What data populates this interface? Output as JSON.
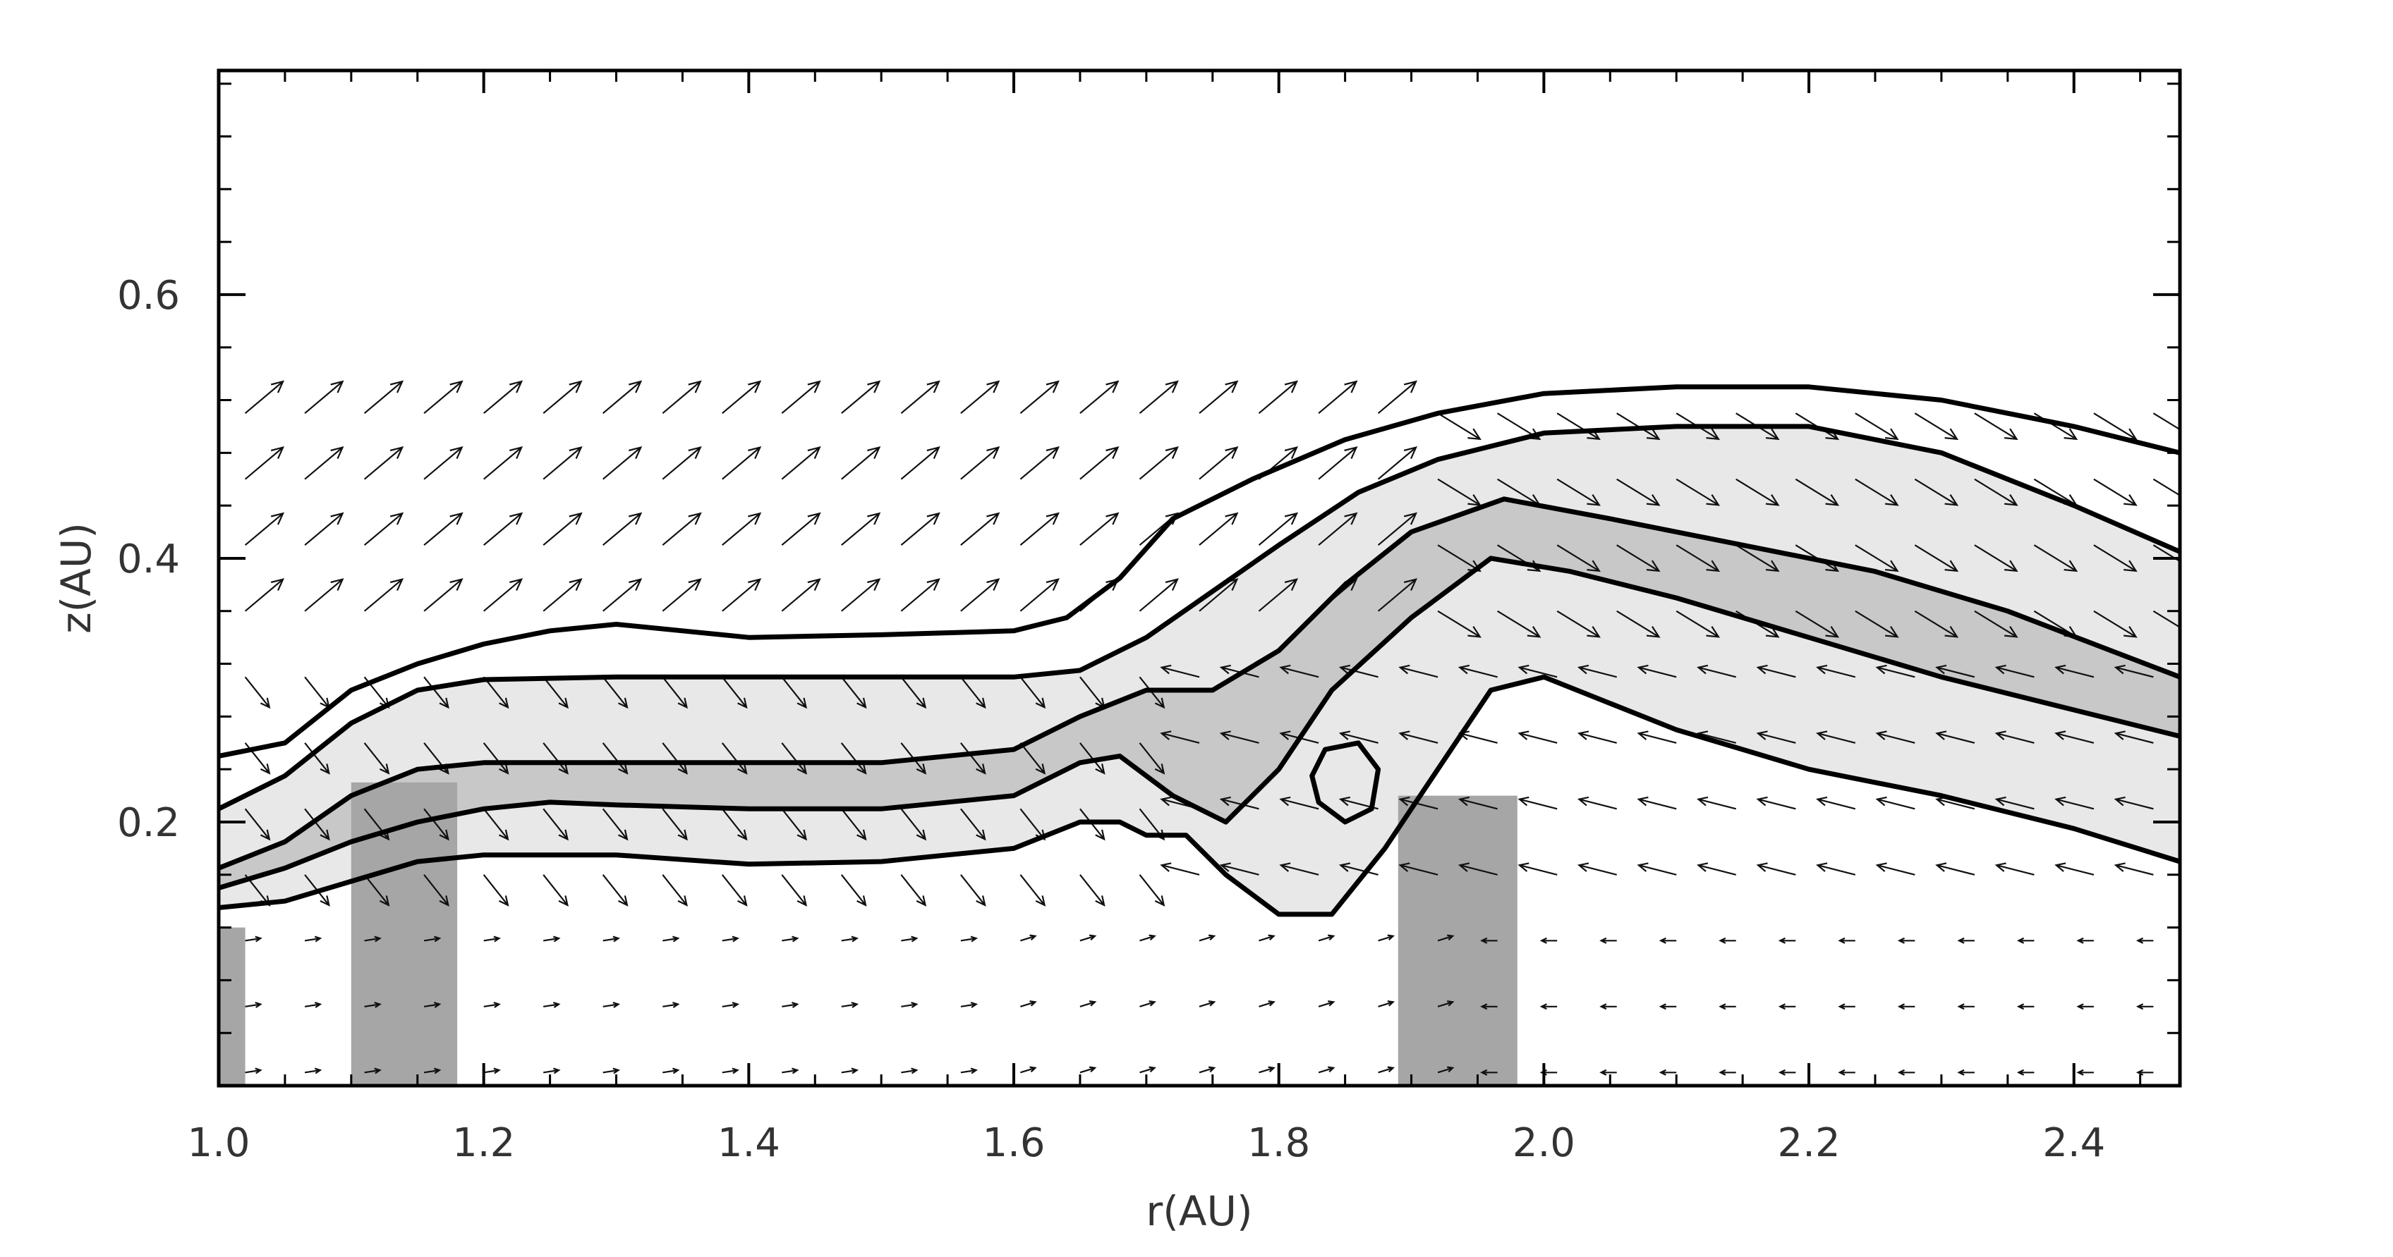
{
  "chart_data": {
    "type": "contour",
    "xlabel": "r(AU)",
    "ylabel": "z(AU)",
    "xlim": [
      1.0,
      2.48
    ],
    "ylim": [
      0.0,
      0.77
    ],
    "xticks": [
      1.0,
      1.2,
      1.4,
      1.6,
      1.8,
      2.0,
      2.2,
      2.4
    ],
    "xtick_labels": [
      "1.0",
      "1.2",
      "1.4",
      "1.6",
      "1.8",
      "2.0",
      "2.2",
      "2.4"
    ],
    "yticks": [
      0.2,
      0.4,
      0.6
    ],
    "ytick_labels": [
      "0.2",
      "0.4",
      "0.6"
    ],
    "grid": false,
    "colors": {
      "shade_light": "#e8e8e8",
      "shade_mid": "#c8c8c8",
      "shade_dark": "#a6a6a6",
      "line": "#000000"
    },
    "contours": [
      {
        "weight": "bold",
        "points": [
          [
            1.0,
            0.25
          ],
          [
            1.05,
            0.26
          ],
          [
            1.1,
            0.3
          ],
          [
            1.15,
            0.32
          ],
          [
            1.2,
            0.335
          ],
          [
            1.25,
            0.345
          ],
          [
            1.3,
            0.35
          ],
          [
            1.35,
            0.345
          ],
          [
            1.4,
            0.34
          ],
          [
            1.5,
            0.342
          ],
          [
            1.6,
            0.345
          ],
          [
            1.64,
            0.355
          ],
          [
            1.68,
            0.385
          ],
          [
            1.72,
            0.43
          ],
          [
            1.78,
            0.46
          ],
          [
            1.85,
            0.49
          ],
          [
            1.92,
            0.51
          ],
          [
            2.0,
            0.525
          ],
          [
            2.1,
            0.53
          ],
          [
            2.2,
            0.53
          ],
          [
            2.3,
            0.52
          ],
          [
            2.4,
            0.5
          ],
          [
            2.48,
            0.48
          ]
        ]
      },
      {
        "weight": "bold",
        "points": [
          [
            1.0,
            0.21
          ],
          [
            1.05,
            0.235
          ],
          [
            1.1,
            0.275
          ],
          [
            1.15,
            0.3
          ],
          [
            1.2,
            0.308
          ],
          [
            1.3,
            0.31
          ],
          [
            1.4,
            0.31
          ],
          [
            1.5,
            0.31
          ],
          [
            1.6,
            0.31
          ],
          [
            1.65,
            0.315
          ],
          [
            1.7,
            0.34
          ],
          [
            1.75,
            0.375
          ],
          [
            1.8,
            0.41
          ],
          [
            1.86,
            0.45
          ],
          [
            1.92,
            0.475
          ],
          [
            2.0,
            0.495
          ],
          [
            2.1,
            0.5
          ],
          [
            2.2,
            0.5
          ],
          [
            2.3,
            0.48
          ],
          [
            2.4,
            0.44
          ],
          [
            2.48,
            0.405
          ]
        ]
      },
      {
        "weight": "bold",
        "points": [
          [
            1.0,
            0.165
          ],
          [
            1.05,
            0.185
          ],
          [
            1.1,
            0.22
          ],
          [
            1.15,
            0.24
          ],
          [
            1.2,
            0.245
          ],
          [
            1.3,
            0.245
          ],
          [
            1.4,
            0.245
          ],
          [
            1.5,
            0.245
          ],
          [
            1.6,
            0.255
          ],
          [
            1.65,
            0.28
          ],
          [
            1.7,
            0.3
          ],
          [
            1.75,
            0.3
          ],
          [
            1.8,
            0.33
          ],
          [
            1.85,
            0.38
          ],
          [
            1.9,
            0.42
          ],
          [
            1.97,
            0.445
          ],
          [
            2.05,
            0.43
          ],
          [
            2.15,
            0.41
          ],
          [
            2.25,
            0.39
          ],
          [
            2.35,
            0.36
          ],
          [
            2.48,
            0.31
          ]
        ]
      },
      {
        "weight": "bold",
        "points": [
          [
            1.0,
            0.15
          ],
          [
            1.05,
            0.165
          ],
          [
            1.1,
            0.185
          ],
          [
            1.15,
            0.2
          ],
          [
            1.2,
            0.21
          ],
          [
            1.25,
            0.215
          ],
          [
            1.3,
            0.213
          ],
          [
            1.4,
            0.21
          ],
          [
            1.5,
            0.21
          ],
          [
            1.6,
            0.22
          ],
          [
            1.65,
            0.245
          ],
          [
            1.68,
            0.25
          ],
          [
            1.72,
            0.22
          ],
          [
            1.76,
            0.2
          ],
          [
            1.8,
            0.24
          ],
          [
            1.84,
            0.3
          ],
          [
            1.9,
            0.355
          ],
          [
            1.96,
            0.4
          ],
          [
            2.02,
            0.39
          ],
          [
            2.1,
            0.37
          ],
          [
            2.2,
            0.34
          ],
          [
            2.3,
            0.31
          ],
          [
            2.4,
            0.285
          ],
          [
            2.48,
            0.265
          ]
        ]
      },
      {
        "weight": "bold",
        "points": [
          [
            1.0,
            0.135
          ],
          [
            1.05,
            0.14
          ],
          [
            1.1,
            0.155
          ],
          [
            1.15,
            0.17
          ],
          [
            1.2,
            0.175
          ],
          [
            1.3,
            0.175
          ],
          [
            1.4,
            0.168
          ],
          [
            1.5,
            0.17
          ],
          [
            1.6,
            0.18
          ],
          [
            1.65,
            0.2
          ],
          [
            1.68,
            0.2
          ],
          [
            1.7,
            0.19
          ],
          [
            1.73,
            0.19
          ],
          [
            1.76,
            0.16
          ],
          [
            1.8,
            0.13
          ],
          [
            1.84,
            0.13
          ],
          [
            1.88,
            0.18
          ],
          [
            1.92,
            0.24
          ],
          [
            1.96,
            0.3
          ],
          [
            2.0,
            0.31
          ],
          [
            2.05,
            0.29
          ],
          [
            2.1,
            0.27
          ],
          [
            2.2,
            0.24
          ],
          [
            2.3,
            0.22
          ],
          [
            2.4,
            0.195
          ],
          [
            2.48,
            0.17
          ]
        ]
      },
      {
        "weight": "bold",
        "closed": true,
        "points": [
          [
            1.83,
            0.215
          ],
          [
            1.85,
            0.2
          ],
          [
            1.87,
            0.21
          ],
          [
            1.875,
            0.24
          ],
          [
            1.86,
            0.26
          ],
          [
            1.835,
            0.255
          ],
          [
            1.825,
            0.235
          ]
        ]
      }
    ],
    "velocity_field": "arrow grid"
  }
}
